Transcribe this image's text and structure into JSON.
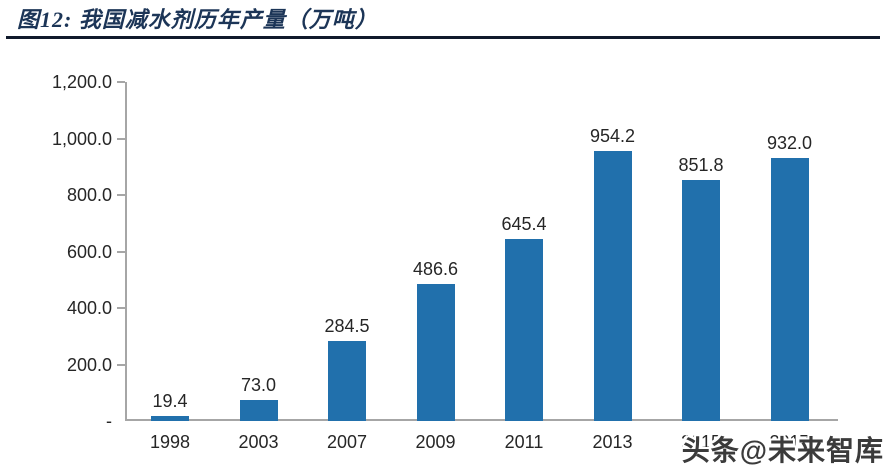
{
  "figure": {
    "title": "图12:  我国减水剂历年产量（万吨）"
  },
  "watermark": "头条@未来智库",
  "colors": {
    "bar": "#2170ac",
    "title": "#1c3557",
    "rule": "#10192b",
    "axis": "#a6a6a6",
    "label": "#262626"
  },
  "chart_data": {
    "type": "bar",
    "title": "我国减水剂历年产量（万吨）",
    "categories": [
      "1998",
      "2003",
      "2007",
      "2009",
      "2011",
      "2013",
      "2015",
      "2017"
    ],
    "values": [
      19.4,
      73.0,
      284.5,
      486.6,
      645.4,
      954.2,
      851.8,
      932.0
    ],
    "value_labels": [
      "19.4",
      "73.0",
      "284.5",
      "486.6",
      "645.4",
      "954.2",
      "851.8",
      "932.0"
    ],
    "xlabel": "",
    "ylabel": "",
    "ylim": [
      0,
      1200
    ],
    "yticks": [
      0,
      200,
      400,
      600,
      800,
      1000,
      1200
    ],
    "ytick_labels": [
      "-",
      "200.0",
      "400.0",
      "600.0",
      "800.0",
      "1,000.0",
      "1,200.0"
    ],
    "grid": false,
    "legend": null,
    "bar_color": "#2170ac",
    "notes": "last two x labels partially hidden by watermark"
  }
}
